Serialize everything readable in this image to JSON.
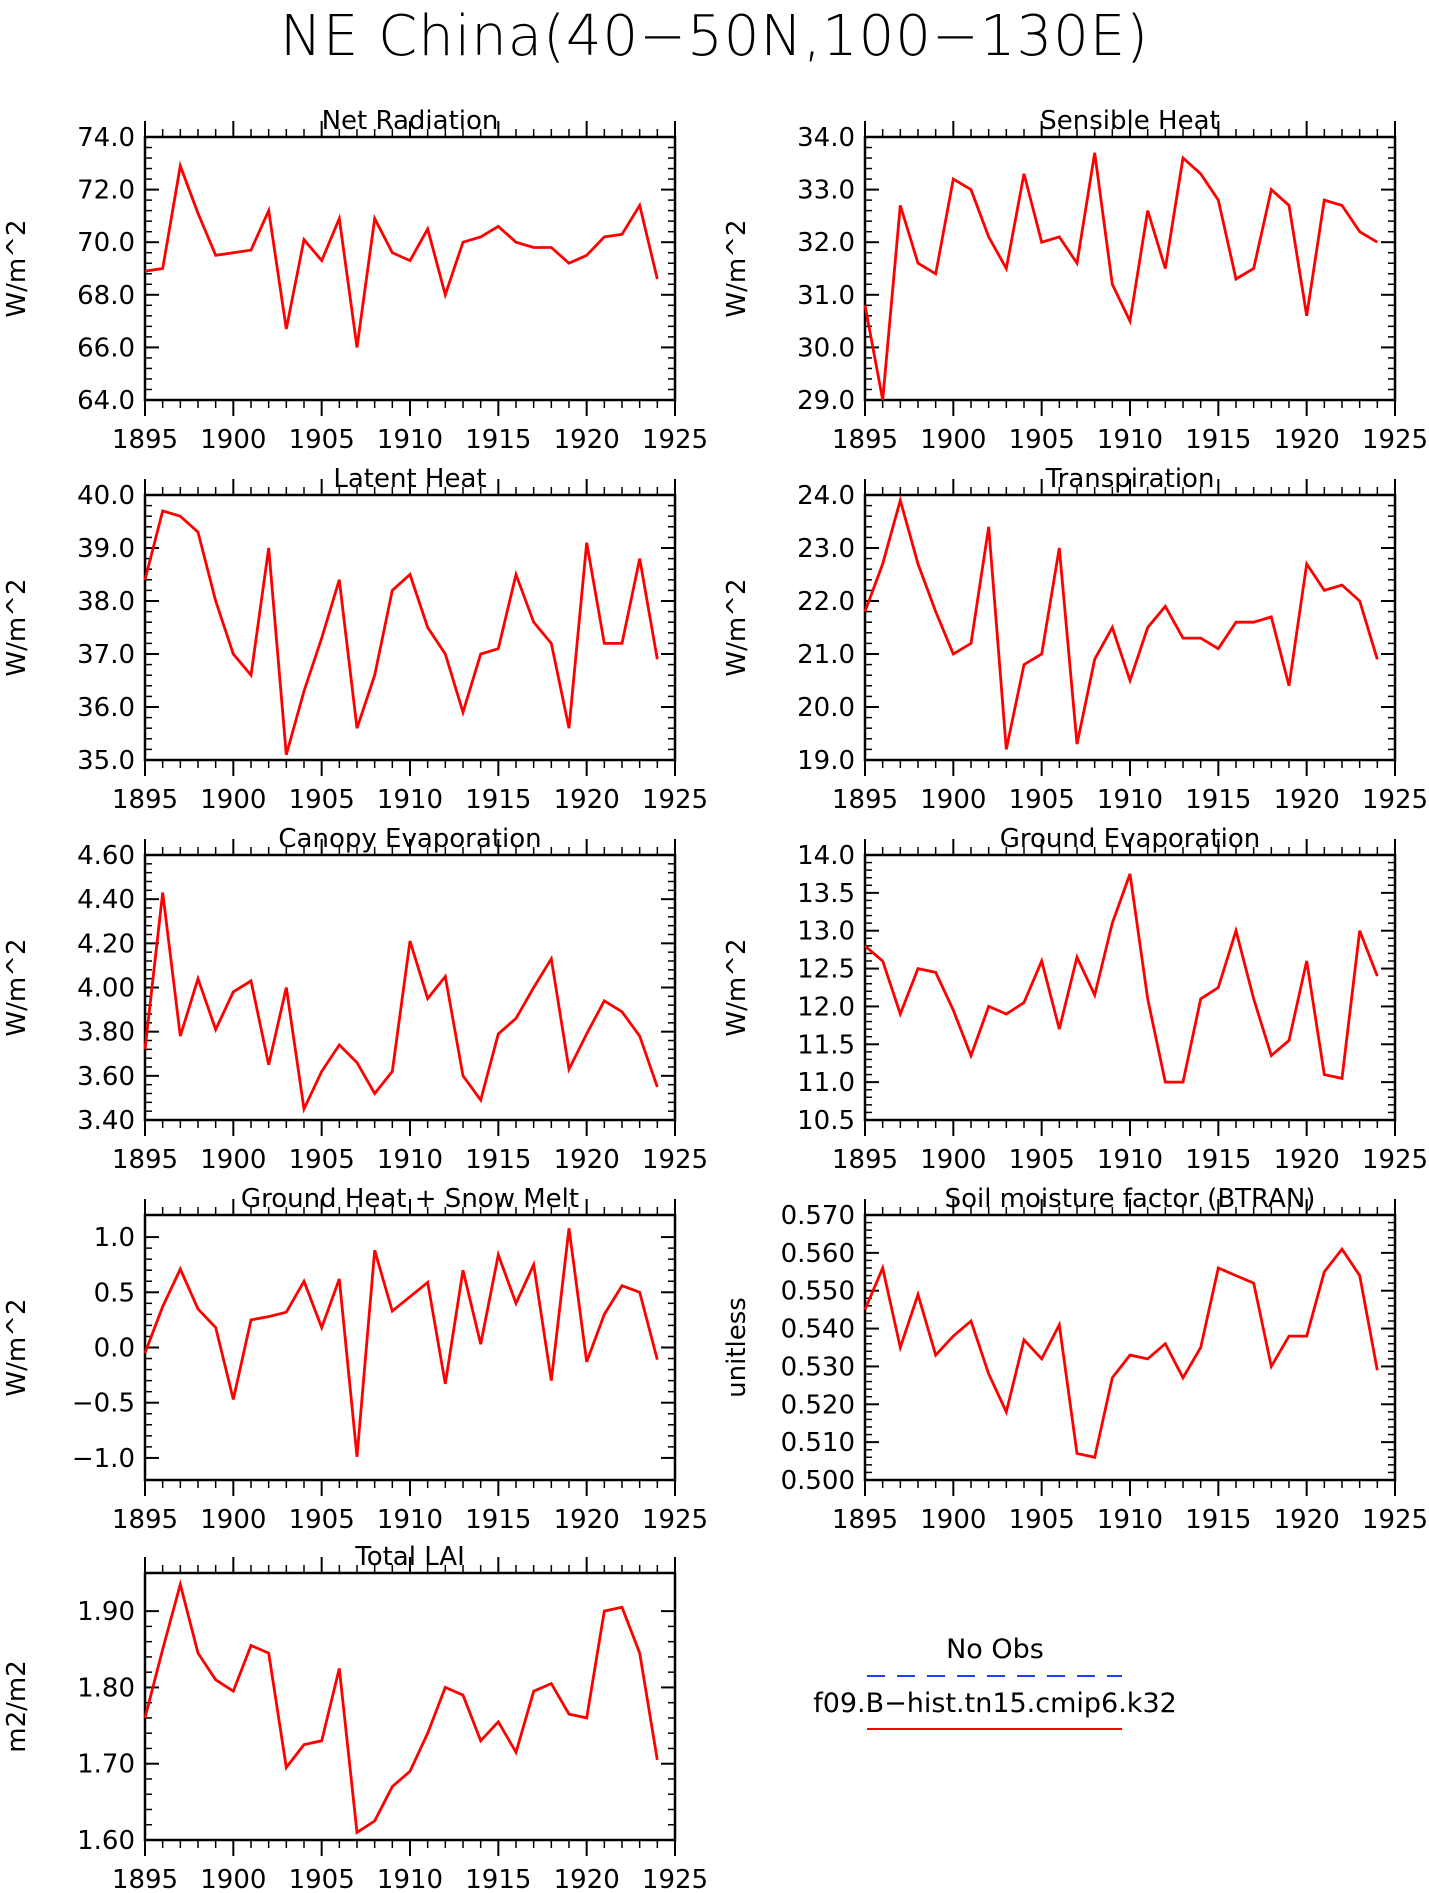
{
  "page_title": "NE China(40−50N,100−130E)",
  "colors": {
    "model": "#ff0000",
    "obs": "#1f3fff",
    "axis": "#000000"
  },
  "legend": {
    "obs_label": "No Obs",
    "model_label": "f09.B−hist.tn15.cmip6.k32"
  },
  "chart_data": [
    {
      "type": "line",
      "title": "Net Radiation",
      "ylabel": "W/m^2",
      "xlim": [
        1895,
        1925
      ],
      "ylim": [
        64,
        74
      ],
      "yticks": [
        64,
        66,
        68,
        70,
        72,
        74
      ],
      "ytick_decimals": 1,
      "xticks": [
        1895,
        1900,
        1905,
        1910,
        1915,
        1920,
        1925
      ],
      "series": [
        {
          "x": [
            1895,
            1896,
            1897,
            1898,
            1899,
            1900,
            1901,
            1902,
            1903,
            1904,
            1905,
            1906,
            1907,
            1908,
            1909,
            1910,
            1911,
            1912,
            1913,
            1914,
            1915,
            1916,
            1917,
            1918,
            1919,
            1920,
            1921,
            1922,
            1923,
            1924
          ],
          "values": [
            68.9,
            69.0,
            72.9,
            71.1,
            69.5,
            69.6,
            69.7,
            71.2,
            66.7,
            70.1,
            69.3,
            70.9,
            66.0,
            70.9,
            69.6,
            69.3,
            70.5,
            68.0,
            70.0,
            70.2,
            70.6,
            70.0,
            69.8,
            69.8,
            69.2,
            69.5,
            70.2,
            70.3,
            71.4,
            68.6
          ]
        }
      ]
    },
    {
      "type": "line",
      "title": "Sensible Heat",
      "ylabel": "W/m^2",
      "xlim": [
        1895,
        1925
      ],
      "ylim": [
        29,
        34
      ],
      "yticks": [
        29,
        30,
        31,
        32,
        33,
        34
      ],
      "ytick_decimals": 1,
      "xticks": [
        1895,
        1900,
        1905,
        1910,
        1915,
        1920,
        1925
      ],
      "series": [
        {
          "x": [
            1895,
            1896,
            1897,
            1898,
            1899,
            1900,
            1901,
            1902,
            1903,
            1904,
            1905,
            1906,
            1907,
            1908,
            1909,
            1910,
            1911,
            1912,
            1913,
            1914,
            1915,
            1916,
            1917,
            1918,
            1919,
            1920,
            1921,
            1922,
            1923,
            1924
          ],
          "values": [
            30.8,
            29.0,
            32.7,
            31.6,
            31.4,
            33.2,
            33.0,
            32.1,
            31.5,
            33.3,
            32.0,
            32.1,
            31.6,
            33.7,
            31.2,
            30.5,
            32.6,
            31.5,
            33.6,
            33.3,
            32.8,
            31.3,
            31.5,
            33.0,
            32.7,
            30.6,
            32.8,
            32.7,
            32.2,
            32.0
          ]
        }
      ]
    },
    {
      "type": "line",
      "title": "Latent Heat",
      "ylabel": "W/m^2",
      "xlim": [
        1895,
        1925
      ],
      "ylim": [
        35,
        40
      ],
      "yticks": [
        35,
        36,
        37,
        38,
        39,
        40
      ],
      "ytick_decimals": 1,
      "xticks": [
        1895,
        1900,
        1905,
        1910,
        1915,
        1920,
        1925
      ],
      "series": [
        {
          "x": [
            1895,
            1896,
            1897,
            1898,
            1899,
            1900,
            1901,
            1902,
            1903,
            1904,
            1905,
            1906,
            1907,
            1908,
            1909,
            1910,
            1911,
            1912,
            1913,
            1914,
            1915,
            1916,
            1917,
            1918,
            1919,
            1920,
            1921,
            1922,
            1923,
            1924
          ],
          "values": [
            38.4,
            39.7,
            39.6,
            39.3,
            38.0,
            37.0,
            36.6,
            39.0,
            35.1,
            36.3,
            37.3,
            38.4,
            35.6,
            36.6,
            38.2,
            38.5,
            37.5,
            37.0,
            35.9,
            37.0,
            37.1,
            38.5,
            37.6,
            37.2,
            35.6,
            39.1,
            37.2,
            37.2,
            38.8,
            36.9
          ]
        }
      ]
    },
    {
      "type": "line",
      "title": "Transpiration",
      "ylabel": "W/m^2",
      "xlim": [
        1895,
        1925
      ],
      "ylim": [
        19,
        24
      ],
      "yticks": [
        19,
        20,
        21,
        22,
        23,
        24
      ],
      "ytick_decimals": 1,
      "xticks": [
        1895,
        1900,
        1905,
        1910,
        1915,
        1920,
        1925
      ],
      "series": [
        {
          "x": [
            1895,
            1896,
            1897,
            1898,
            1899,
            1900,
            1901,
            1902,
            1903,
            1904,
            1905,
            1906,
            1907,
            1908,
            1909,
            1910,
            1911,
            1912,
            1913,
            1914,
            1915,
            1916,
            1917,
            1918,
            1919,
            1920,
            1921,
            1922,
            1923,
            1924
          ],
          "values": [
            21.8,
            22.7,
            23.9,
            22.7,
            21.8,
            21.0,
            21.2,
            23.4,
            19.2,
            20.8,
            21.0,
            23.0,
            19.3,
            20.9,
            21.5,
            20.5,
            21.5,
            21.9,
            21.3,
            21.3,
            21.1,
            21.6,
            21.6,
            21.7,
            20.4,
            22.7,
            22.2,
            22.3,
            22.0,
            20.9
          ]
        }
      ]
    },
    {
      "type": "line",
      "title": "Canopy Evaporation",
      "ylabel": "W/m^2",
      "xlim": [
        1895,
        1925
      ],
      "ylim": [
        3.4,
        4.6
      ],
      "yticks": [
        3.4,
        3.6,
        3.8,
        4.0,
        4.2,
        4.4,
        4.6
      ],
      "ytick_decimals": 2,
      "xticks": [
        1895,
        1900,
        1905,
        1910,
        1915,
        1920,
        1925
      ],
      "series": [
        {
          "x": [
            1895,
            1896,
            1897,
            1898,
            1899,
            1900,
            1901,
            1902,
            1903,
            1904,
            1905,
            1906,
            1907,
            1908,
            1909,
            1910,
            1911,
            1912,
            1913,
            1914,
            1915,
            1916,
            1917,
            1918,
            1919,
            1920,
            1921,
            1922,
            1923,
            1924
          ],
          "values": [
            3.72,
            4.43,
            3.78,
            4.04,
            3.81,
            3.98,
            4.03,
            3.65,
            4.0,
            3.45,
            3.62,
            3.74,
            3.66,
            3.52,
            3.62,
            4.21,
            3.95,
            4.05,
            3.6,
            3.49,
            3.79,
            3.86,
            4.0,
            4.13,
            3.63,
            3.79,
            3.94,
            3.89,
            3.78,
            3.55
          ]
        }
      ]
    },
    {
      "type": "line",
      "title": "Ground Evaporation",
      "ylabel": "W/m^2",
      "xlim": [
        1895,
        1925
      ],
      "ylim": [
        10.5,
        14.0
      ],
      "yticks": [
        10.5,
        11.0,
        11.5,
        12.0,
        12.5,
        13.0,
        13.5,
        14.0
      ],
      "ytick_decimals": 1,
      "xticks": [
        1895,
        1900,
        1905,
        1910,
        1915,
        1920,
        1925
      ],
      "series": [
        {
          "x": [
            1895,
            1896,
            1897,
            1898,
            1899,
            1900,
            1901,
            1902,
            1903,
            1904,
            1905,
            1906,
            1907,
            1908,
            1909,
            1910,
            1911,
            1912,
            1913,
            1914,
            1915,
            1916,
            1917,
            1918,
            1919,
            1920,
            1921,
            1922,
            1923,
            1924
          ],
          "values": [
            12.8,
            12.6,
            11.9,
            12.5,
            12.45,
            11.95,
            11.35,
            12.0,
            11.9,
            12.05,
            12.6,
            11.7,
            12.65,
            12.15,
            13.1,
            13.75,
            12.1,
            11.0,
            11.0,
            12.1,
            12.25,
            13.0,
            12.1,
            11.35,
            11.55,
            12.6,
            11.1,
            11.05,
            13.0,
            12.4
          ]
        }
      ]
    },
    {
      "type": "line",
      "title": "Ground Heat + Snow Melt",
      "ylabel": "W/m^2",
      "xlim": [
        1895,
        1925
      ],
      "ylim": [
        -1.2,
        1.2
      ],
      "yticks": [
        -1.0,
        -0.5,
        0.0,
        0.5,
        1.0
      ],
      "ytick_decimals": 1,
      "xticks": [
        1895,
        1900,
        1905,
        1910,
        1915,
        1920,
        1925
      ],
      "series": [
        {
          "x": [
            1895,
            1896,
            1897,
            1898,
            1899,
            1900,
            1901,
            1902,
            1903,
            1904,
            1905,
            1906,
            1907,
            1908,
            1909,
            1910,
            1911,
            1912,
            1913,
            1914,
            1915,
            1916,
            1917,
            1918,
            1919,
            1920,
            1921,
            1922,
            1923,
            1924
          ],
          "values": [
            -0.05,
            0.37,
            0.71,
            0.35,
            0.18,
            -0.47,
            0.25,
            0.28,
            0.32,
            0.6,
            0.18,
            0.62,
            -0.99,
            0.88,
            0.33,
            0.46,
            0.59,
            -0.33,
            0.7,
            0.03,
            0.84,
            0.4,
            0.75,
            -0.3,
            1.08,
            -0.13,
            0.3,
            0.56,
            0.5,
            -0.11
          ]
        }
      ]
    },
    {
      "type": "line",
      "title": "Soil moisture factor (BTRAN)",
      "ylabel": "unitless",
      "xlim": [
        1895,
        1925
      ],
      "ylim": [
        0.5,
        0.57
      ],
      "yticks": [
        0.5,
        0.51,
        0.52,
        0.53,
        0.54,
        0.55,
        0.56,
        0.57
      ],
      "ytick_decimals": 3,
      "xticks": [
        1895,
        1900,
        1905,
        1910,
        1915,
        1920,
        1925
      ],
      "series": [
        {
          "x": [
            1895,
            1896,
            1897,
            1898,
            1899,
            1900,
            1901,
            1902,
            1903,
            1904,
            1905,
            1906,
            1907,
            1908,
            1909,
            1910,
            1911,
            1912,
            1913,
            1914,
            1915,
            1916,
            1917,
            1918,
            1919,
            1920,
            1921,
            1922,
            1923,
            1924
          ],
          "values": [
            0.545,
            0.556,
            0.535,
            0.549,
            0.533,
            0.538,
            0.542,
            0.528,
            0.518,
            0.537,
            0.532,
            0.541,
            0.507,
            0.506,
            0.527,
            0.533,
            0.532,
            0.536,
            0.527,
            0.535,
            0.556,
            0.554,
            0.552,
            0.53,
            0.538,
            0.538,
            0.555,
            0.561,
            0.554,
            0.529
          ]
        }
      ]
    },
    {
      "type": "line",
      "title": "Total LAI",
      "ylabel": "m2/m2",
      "xlim": [
        1895,
        1925
      ],
      "ylim": [
        1.6,
        1.95
      ],
      "yticks": [
        1.6,
        1.7,
        1.8,
        1.9
      ],
      "ytick_decimals": 2,
      "xticks": [
        1895,
        1900,
        1905,
        1910,
        1915,
        1920,
        1925
      ],
      "series": [
        {
          "x": [
            1895,
            1896,
            1897,
            1898,
            1899,
            1900,
            1901,
            1902,
            1903,
            1904,
            1905,
            1906,
            1907,
            1908,
            1909,
            1910,
            1911,
            1912,
            1913,
            1914,
            1915,
            1916,
            1917,
            1918,
            1919,
            1920,
            1921,
            1922,
            1923,
            1924
          ],
          "values": [
            1.76,
            1.85,
            1.935,
            1.845,
            1.81,
            1.795,
            1.855,
            1.845,
            1.695,
            1.725,
            1.73,
            1.825,
            1.61,
            1.625,
            1.67,
            1.69,
            1.74,
            1.8,
            1.79,
            1.73,
            1.755,
            1.715,
            1.795,
            1.805,
            1.765,
            1.76,
            1.9,
            1.905,
            1.845,
            1.705
          ]
        }
      ]
    }
  ]
}
